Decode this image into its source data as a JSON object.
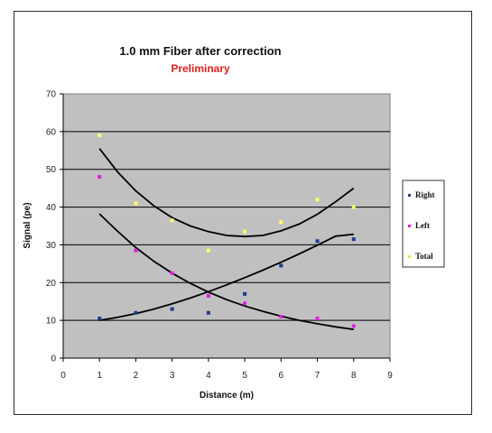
{
  "chart_data": {
    "type": "scatter",
    "title": "1.0 mm Fiber after correction",
    "subtitle": "Preliminary",
    "xlabel": "Distance (m)",
    "ylabel": "Signal (pe)",
    "xlim": [
      0,
      9
    ],
    "ylim": [
      0,
      70
    ],
    "xticks": [
      "0",
      "1",
      "2",
      "3",
      "4",
      "5",
      "6",
      "7",
      "8",
      "9"
    ],
    "yticks": [
      "0",
      "10",
      "20",
      "30",
      "40",
      "50",
      "60",
      "70"
    ],
    "grid": "horizontal",
    "legend_position": "right",
    "plot_background": "#c0c0c0",
    "series": [
      {
        "name": "Right",
        "color": "#1f3a8a",
        "x": [
          1,
          2,
          3,
          4,
          5,
          6,
          7,
          8
        ],
        "y": [
          10.5,
          12,
          13,
          12,
          17,
          24.5,
          31,
          31.5
        ],
        "trend": [
          [
            1,
            10
          ],
          [
            1.5,
            10.8
          ],
          [
            2,
            11.8
          ],
          [
            2.5,
            13
          ],
          [
            3,
            14.4
          ],
          [
            3.5,
            15.9
          ],
          [
            4,
            17.6
          ],
          [
            4.5,
            19.4
          ],
          [
            5,
            21.3
          ],
          [
            5.5,
            23.3
          ],
          [
            6,
            25.4
          ],
          [
            6.5,
            27.6
          ],
          [
            7,
            29.9
          ],
          [
            7.5,
            32.3
          ],
          [
            8,
            32.8
          ]
        ]
      },
      {
        "name": "Left",
        "color": "#e020e0",
        "x": [
          1,
          2,
          3,
          4,
          5,
          6,
          7,
          8
        ],
        "y": [
          48,
          28.5,
          22.5,
          16.5,
          14.5,
          11,
          10.5,
          8.5
        ],
        "trend": [
          [
            1,
            38.2
          ],
          [
            1.5,
            33.6
          ],
          [
            2,
            29.3
          ],
          [
            2.5,
            25.6
          ],
          [
            3,
            22.5
          ],
          [
            3.5,
            19.8
          ],
          [
            4,
            17.5
          ],
          [
            4.5,
            15.5
          ],
          [
            5,
            13.8
          ],
          [
            5.5,
            12.4
          ],
          [
            6,
            11.1
          ],
          [
            6.5,
            10
          ],
          [
            7,
            9.1
          ],
          [
            7.5,
            8.3
          ],
          [
            8,
            7.6
          ]
        ]
      },
      {
        "name": "Total",
        "color": "#ffff66",
        "x": [
          1,
          2,
          3,
          4,
          5,
          6,
          7,
          8
        ],
        "y": [
          59,
          41,
          36.5,
          28.5,
          33.5,
          36,
          42,
          40
        ],
        "trend": [
          [
            1,
            55.5
          ],
          [
            1.5,
            49.3
          ],
          [
            2,
            44.3
          ],
          [
            2.5,
            40.3
          ],
          [
            3,
            37.2
          ],
          [
            3.5,
            35
          ],
          [
            4,
            33.5
          ],
          [
            4.5,
            32.5
          ],
          [
            5,
            32.2
          ],
          [
            5.5,
            32.5
          ],
          [
            6,
            33.7
          ],
          [
            6.5,
            35.5
          ],
          [
            7,
            38.1
          ],
          [
            7.5,
            41.4
          ],
          [
            8,
            45
          ]
        ]
      }
    ]
  }
}
